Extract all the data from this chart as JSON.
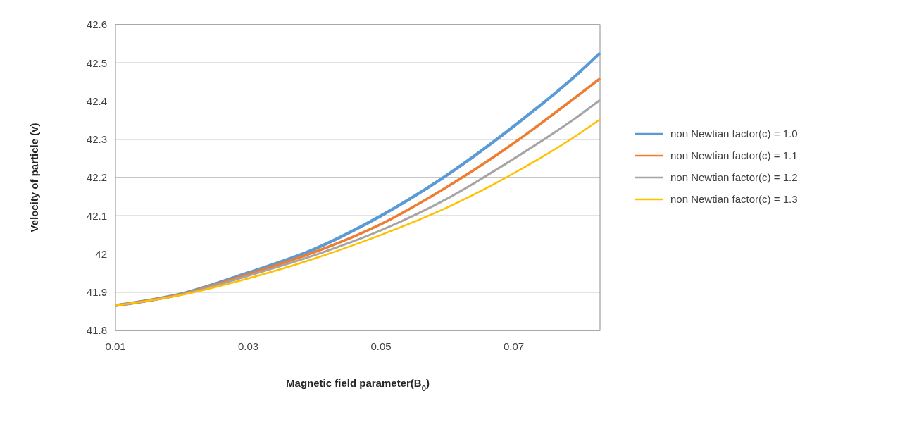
{
  "chart_data": {
    "type": "line",
    "xlabel": "Magnetic field parameter(B$_{0}$)",
    "ylabel": "Velocity of particle (v)",
    "x": [
      0.01,
      0.02,
      0.03,
      0.04,
      0.05,
      0.06,
      0.07,
      0.08,
      0.083
    ],
    "series": [
      {
        "name": "non Newtian factor(c) = 1.0",
        "color": "#5b9bd5",
        "values": [
          41.865,
          41.896,
          41.951,
          42.013,
          42.1,
          42.207,
          42.334,
          42.477,
          42.526
        ]
      },
      {
        "name": "non Newtian factor(c) = 1.1",
        "color": "#ed7d31",
        "values": [
          41.865,
          41.895,
          41.947,
          42.005,
          42.078,
          42.176,
          42.29,
          42.419,
          42.459
        ]
      },
      {
        "name": "non Newtian factor(c) = 1.2",
        "color": "#a5a5a5",
        "values": [
          41.865,
          41.894,
          41.943,
          41.997,
          42.062,
          42.145,
          42.249,
          42.364,
          42.403
        ]
      },
      {
        "name": "non Newtian factor(c) = 1.3",
        "color": "#ffc000",
        "values": [
          41.865,
          41.893,
          41.936,
          41.988,
          42.05,
          42.122,
          42.211,
          42.316,
          42.352
        ]
      }
    ],
    "xlim": [
      0.01,
      0.083
    ],
    "xticks": [
      0.01,
      0.03,
      0.05,
      0.07
    ],
    "ylim": [
      41.8,
      42.6
    ],
    "yticks": [
      41.8,
      41.9,
      42,
      42.1,
      42.2,
      42.3,
      42.4,
      42.5,
      42.6
    ],
    "grid": "y",
    "legend": "right"
  }
}
